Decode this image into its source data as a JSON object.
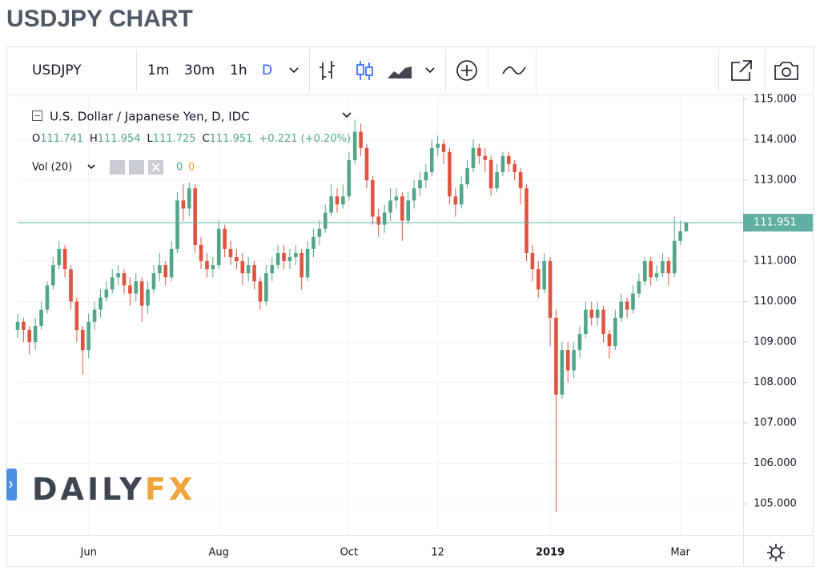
{
  "page_title": "USDJPY CHART",
  "toolbar": {
    "symbol": "USDJPY",
    "intervals": [
      "1m",
      "30m",
      "1h",
      "D"
    ]
  },
  "watermark": [
    "DAILY",
    "FX"
  ],
  "chart_data": {
    "type": "candlestick",
    "series": [
      {
        "name": "U.S. Dollar / Japanese Yen, D, IDC",
        "up_color": "#53a58a",
        "down_color": "#e0533f",
        "open": [
          109.3,
          109.5,
          109.3,
          109.0,
          109.4,
          109.8,
          110.4,
          110.9,
          111.3,
          110.8,
          110.0,
          109.3,
          108.8,
          109.5,
          109.8,
          110.1,
          110.3,
          110.6,
          110.7,
          110.4,
          110.2,
          110.5,
          109.9,
          110.3,
          110.7,
          110.9,
          110.6,
          111.3,
          112.5,
          112.3,
          112.8,
          111.4,
          111.0,
          110.8,
          110.9,
          111.8,
          111.3,
          111.1,
          111.0,
          110.7,
          110.9,
          110.5,
          110.0,
          110.7,
          110.9,
          111.2,
          111.0,
          111.1,
          111.2,
          110.6,
          111.3,
          111.6,
          111.8,
          112.2,
          112.6,
          112.4,
          112.6,
          113.5,
          114.2,
          113.8,
          113.0,
          112.1,
          111.9,
          112.2,
          112.5,
          112.6,
          112.0,
          112.5,
          112.8,
          113.0,
          113.2,
          113.8,
          113.9,
          113.7,
          112.6,
          112.4,
          112.9,
          113.3,
          113.8,
          113.6,
          113.5,
          112.8,
          113.2,
          113.6,
          113.4,
          113.2,
          112.8,
          111.2,
          110.8,
          110.3,
          111.0,
          109.6,
          107.7,
          108.8,
          108.3,
          108.8,
          109.2,
          109.8,
          109.6,
          109.8,
          109.2,
          108.9,
          109.6,
          110.0,
          109.8,
          110.2,
          110.5,
          111.0,
          110.6,
          110.7,
          111.0,
          110.7,
          111.5,
          111.741
        ],
        "high": [
          109.7,
          109.6,
          109.4,
          109.6,
          110.0,
          110.5,
          111.1,
          111.5,
          111.4,
          110.9,
          110.1,
          109.4,
          109.7,
          110.0,
          110.3,
          110.5,
          110.8,
          110.9,
          110.8,
          110.6,
          110.7,
          110.6,
          110.5,
          110.9,
          111.2,
          111.0,
          111.5,
          112.7,
          112.9,
          112.95,
          112.9,
          111.6,
          111.2,
          111.1,
          112.0,
          111.9,
          111.5,
          111.3,
          111.2,
          111.1,
          111.0,
          110.6,
          110.9,
          111.1,
          111.4,
          111.4,
          111.3,
          111.4,
          111.3,
          111.5,
          111.8,
          112.0,
          112.4,
          112.9,
          112.8,
          112.9,
          113.7,
          114.5,
          114.4,
          113.9,
          113.1,
          112.3,
          112.4,
          112.8,
          112.8,
          112.7,
          112.7,
          113.0,
          113.2,
          113.4,
          114.0,
          114.1,
          114.0,
          113.8,
          112.8,
          113.1,
          113.5,
          114.0,
          113.9,
          113.8,
          113.6,
          113.4,
          113.7,
          113.7,
          113.5,
          113.3,
          112.9,
          111.4,
          111.0,
          111.2,
          111.1,
          109.8,
          109.0,
          109.0,
          109.0,
          109.4,
          110.0,
          110.0,
          110.0,
          109.9,
          109.3,
          109.8,
          110.2,
          110.1,
          110.4,
          110.7,
          111.1,
          111.1,
          110.9,
          111.2,
          111.1,
          112.1,
          112.0,
          111.954
        ],
        "low": [
          109.1,
          109.0,
          108.7,
          108.8,
          109.3,
          109.7,
          110.3,
          110.8,
          110.6,
          109.8,
          109.0,
          108.2,
          108.6,
          109.3,
          109.6,
          110.0,
          110.2,
          110.4,
          110.2,
          109.9,
          110.0,
          109.5,
          109.7,
          110.2,
          110.5,
          110.4,
          110.5,
          111.2,
          112.0,
          112.1,
          111.2,
          110.8,
          110.6,
          110.6,
          110.8,
          111.1,
          110.9,
          110.8,
          110.4,
          110.5,
          110.3,
          109.8,
          109.9,
          110.5,
          110.8,
          110.8,
          110.8,
          110.9,
          110.3,
          110.5,
          111.1,
          111.4,
          111.7,
          112.1,
          112.2,
          112.3,
          112.5,
          113.4,
          113.6,
          112.8,
          111.9,
          111.6,
          111.7,
          112.0,
          112.3,
          111.5,
          111.9,
          112.3,
          112.6,
          112.8,
          113.1,
          113.6,
          113.4,
          112.4,
          112.1,
          112.3,
          112.8,
          113.2,
          113.4,
          113.2,
          112.6,
          112.7,
          113.1,
          113.2,
          113.0,
          112.4,
          111.0,
          110.5,
          110.1,
          110.2,
          108.9,
          104.8,
          107.6,
          108.0,
          108.1,
          108.6,
          109.1,
          109.4,
          109.4,
          109.0,
          108.6,
          108.8,
          109.5,
          109.6,
          109.7,
          110.1,
          110.4,
          110.4,
          110.5,
          110.6,
          110.4,
          110.6,
          111.4,
          111.725
        ],
        "close": [
          109.5,
          109.3,
          109.0,
          109.4,
          109.8,
          110.4,
          110.9,
          111.3,
          110.8,
          110.0,
          109.3,
          108.8,
          109.5,
          109.8,
          110.1,
          110.3,
          110.6,
          110.7,
          110.4,
          110.2,
          110.5,
          109.9,
          110.3,
          110.7,
          110.9,
          110.6,
          111.3,
          112.5,
          112.3,
          112.8,
          111.4,
          111.0,
          110.8,
          110.9,
          111.8,
          111.3,
          111.1,
          111.0,
          110.7,
          110.9,
          110.5,
          110.0,
          110.7,
          110.9,
          111.2,
          111.0,
          111.1,
          111.2,
          110.6,
          111.3,
          111.6,
          111.8,
          112.2,
          112.6,
          112.4,
          112.6,
          113.5,
          114.2,
          113.8,
          113.0,
          112.1,
          111.9,
          112.2,
          112.5,
          112.6,
          112.0,
          112.5,
          112.8,
          113.0,
          113.2,
          113.8,
          113.9,
          113.7,
          112.6,
          112.4,
          112.9,
          113.3,
          113.8,
          113.6,
          113.5,
          112.8,
          113.2,
          113.6,
          113.4,
          113.2,
          112.8,
          111.2,
          110.8,
          110.3,
          111.0,
          109.6,
          107.7,
          108.8,
          108.3,
          108.8,
          109.2,
          109.8,
          109.6,
          109.8,
          109.2,
          108.9,
          109.6,
          110.0,
          109.8,
          110.2,
          110.5,
          111.0,
          110.6,
          110.7,
          111.0,
          110.7,
          111.5,
          111.74,
          111.951
        ]
      }
    ],
    "categories": [
      null,
      null,
      null,
      null,
      null,
      null,
      null,
      null,
      null,
      null,
      null,
      null,
      "Jun",
      null,
      null,
      null,
      null,
      null,
      null,
      null,
      null,
      null,
      null,
      null,
      null,
      null,
      null,
      null,
      null,
      null,
      null,
      null,
      null,
      null,
      "Aug",
      null,
      null,
      null,
      null,
      null,
      null,
      null,
      null,
      null,
      null,
      null,
      null,
      null,
      null,
      null,
      null,
      null,
      null,
      null,
      null,
      null,
      "Oct",
      null,
      null,
      null,
      null,
      null,
      null,
      null,
      null,
      null,
      null,
      null,
      null,
      null,
      null,
      "12",
      null,
      null,
      null,
      null,
      null,
      null,
      null,
      null,
      null,
      null,
      null,
      null,
      null,
      null,
      null,
      null,
      null,
      null,
      "2019",
      null,
      null,
      null,
      null,
      null,
      null,
      null,
      null,
      null,
      null,
      null,
      null,
      null,
      null,
      null,
      null,
      null,
      null,
      null,
      null,
      null,
      "Mar",
      null
    ],
    "ohlc_labels": [
      "O",
      "H",
      "L",
      "C"
    ],
    "change": "+0.221 (+0.20%)",
    "volume": {
      "label": "Vol (20)",
      "values": [
        0,
        0
      ]
    },
    "ylim": [
      104.23,
      115.12
    ],
    "yticks": [
      {
        "value": 105,
        "label": "105.000"
      },
      {
        "value": 106,
        "label": "106.000"
      },
      {
        "value": 107,
        "label": "107.000"
      },
      {
        "value": 108,
        "label": "108.000"
      },
      {
        "value": 109,
        "label": "109.000"
      },
      {
        "value": 110,
        "label": "110.000"
      },
      {
        "value": 111,
        "label": "111.000"
      },
      {
        "value": 112,
        "label": "112.000"
      },
      {
        "value": 113,
        "label": "113.000"
      },
      {
        "value": 114,
        "label": "114.000"
      },
      {
        "value": 115,
        "label": "115.000"
      }
    ],
    "grid": true,
    "last_price_color": "#5fb0a3"
  }
}
